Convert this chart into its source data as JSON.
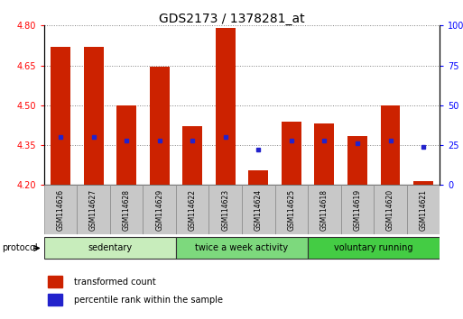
{
  "title": "GDS2173 / 1378281_at",
  "samples": [
    "GSM114626",
    "GSM114627",
    "GSM114628",
    "GSM114629",
    "GSM114622",
    "GSM114623",
    "GSM114624",
    "GSM114625",
    "GSM114618",
    "GSM114619",
    "GSM114620",
    "GSM114621"
  ],
  "transformed_count": [
    4.72,
    4.72,
    4.5,
    4.645,
    4.42,
    4.79,
    4.255,
    4.44,
    4.43,
    4.385,
    4.5,
    4.215
  ],
  "percentile_rank": [
    30,
    30,
    28,
    28,
    28,
    30,
    22,
    28,
    28,
    26,
    28,
    24
  ],
  "groups": [
    {
      "label": "sedentary",
      "start": 0,
      "end": 4
    },
    {
      "label": "twice a week activity",
      "start": 4,
      "end": 8
    },
    {
      "label": "voluntary running",
      "start": 8,
      "end": 12
    }
  ],
  "ylim_left": [
    4.2,
    4.8
  ],
  "ylim_right": [
    0,
    100
  ],
  "yticks_left": [
    4.2,
    4.35,
    4.5,
    4.65,
    4.8
  ],
  "yticks_right": [
    0,
    25,
    50,
    75,
    100
  ],
  "bar_color": "#cc2200",
  "dot_color": "#2222cc",
  "bar_bottom": 4.2,
  "bar_width": 0.6,
  "legend_red": "transformed count",
  "legend_blue": "percentile rank within the sample",
  "protocol_label": "protocol",
  "group_colors": [
    "#c8edbc",
    "#7dd97d",
    "#44cc44"
  ],
  "sample_box_color": "#c8c8c8",
  "title_fontsize": 10,
  "axis_fontsize": 7,
  "label_fontsize": 7
}
